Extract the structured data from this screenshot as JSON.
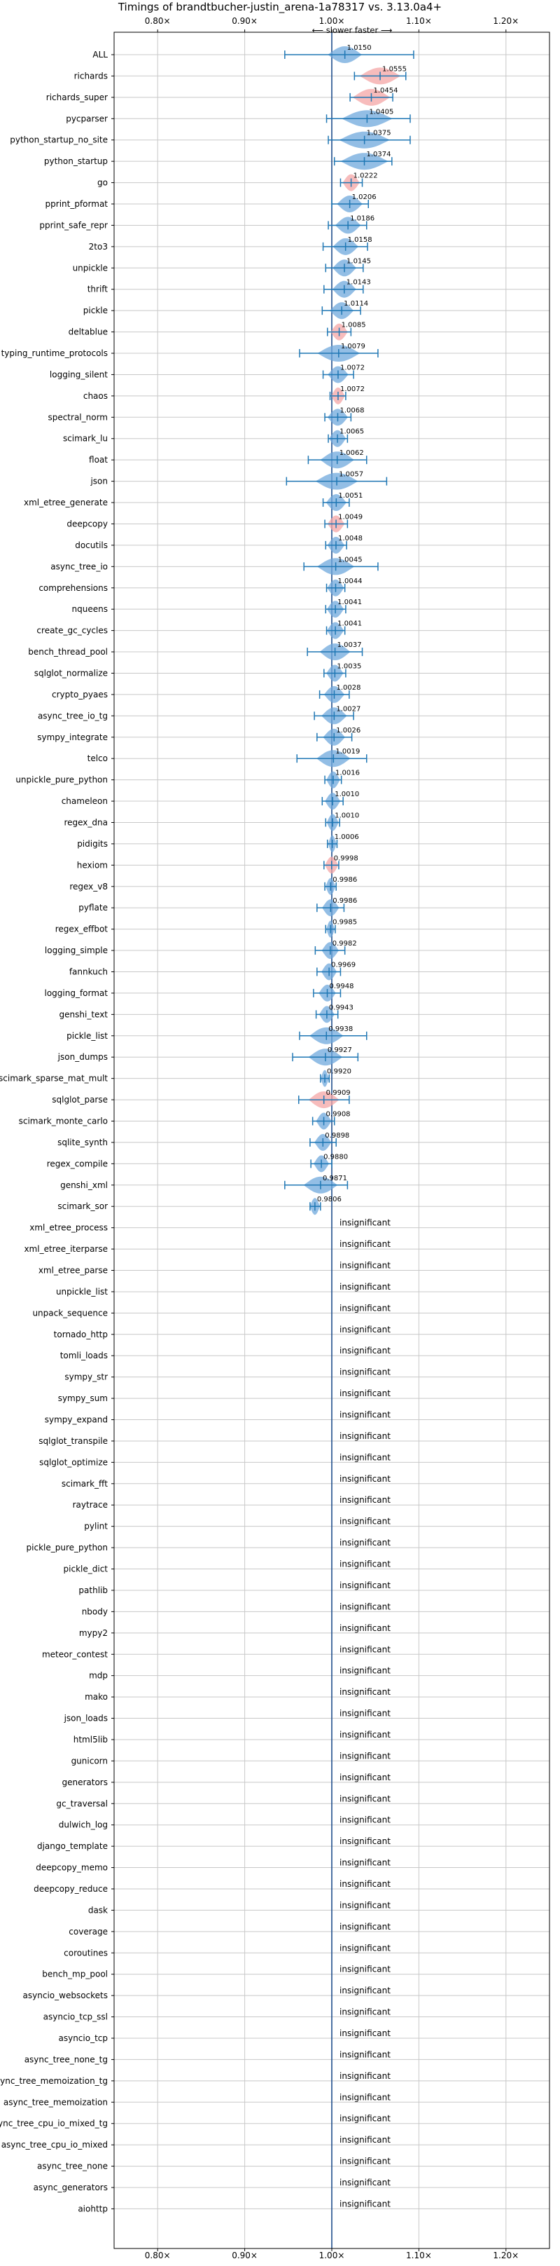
{
  "chart_data": {
    "type": "violin",
    "title": "Timings of brandtbucher-justin_arena-1a78317 vs. 3.13.0a4+",
    "axis_note": "⟵ slower    faster ⟶",
    "xlim": [
      0.75,
      1.25
    ],
    "xticks": [
      0.8,
      0.9,
      1.0,
      1.1,
      1.2
    ],
    "xtick_labels": [
      "0.80×",
      "0.90×",
      "1.00×",
      "1.10×",
      "1.20×"
    ],
    "grid": true,
    "insignificant_label": "insignificant",
    "colors": {
      "faster": "#6fa8dc",
      "slower": "#f4a6a6",
      "errorbar": "#1f77b4",
      "reference_line": "#1f4e8c",
      "grid": "#c8c8c8"
    },
    "benchmarks": [
      {
        "name": "ALL",
        "mean": 1.015,
        "label": "1.0150",
        "lo": 0.946,
        "hi": 1.094,
        "color": "faster",
        "spread": 0.02
      },
      {
        "name": "richards",
        "mean": 1.0555,
        "label": "1.0555",
        "lo": 1.026,
        "hi": 1.085,
        "color": "slower",
        "spread": 0.024
      },
      {
        "name": "richards_super",
        "mean": 1.0454,
        "label": "1.0454",
        "lo": 1.021,
        "hi": 1.07,
        "color": "slower",
        "spread": 0.022
      },
      {
        "name": "pycparser",
        "mean": 1.0405,
        "label": "1.0405",
        "lo": 0.994,
        "hi": 1.09,
        "color": "faster",
        "spread": 0.03
      },
      {
        "name": "python_startup_no_site",
        "mean": 1.0375,
        "label": "1.0375",
        "lo": 0.996,
        "hi": 1.09,
        "color": "faster",
        "spread": 0.03
      },
      {
        "name": "python_startup",
        "mean": 1.0374,
        "label": "1.0374",
        "lo": 1.003,
        "hi": 1.069,
        "color": "faster",
        "spread": 0.028
      },
      {
        "name": "go",
        "mean": 1.0222,
        "label": "1.0222",
        "lo": 1.01,
        "hi": 1.035,
        "color": "slower",
        "spread": 0.01
      },
      {
        "name": "pprint_pformat",
        "mean": 1.0206,
        "label": "1.0206",
        "lo": 1.0,
        "hi": 1.042,
        "color": "faster",
        "spread": 0.015
      },
      {
        "name": "pprint_safe_repr",
        "mean": 1.0186,
        "label": "1.0186",
        "lo": 0.996,
        "hi": 1.04,
        "color": "faster",
        "spread": 0.015
      },
      {
        "name": "2to3",
        "mean": 1.0158,
        "label": "1.0158",
        "lo": 0.99,
        "hi": 1.041,
        "color": "faster",
        "spread": 0.015
      },
      {
        "name": "unpickle",
        "mean": 1.0145,
        "label": "1.0145",
        "lo": 0.993,
        "hi": 1.036,
        "color": "faster",
        "spread": 0.014
      },
      {
        "name": "thrift",
        "mean": 1.0143,
        "label": "1.0143",
        "lo": 0.991,
        "hi": 1.036,
        "color": "faster",
        "spread": 0.014
      },
      {
        "name": "pickle",
        "mean": 1.0114,
        "label": "1.0114",
        "lo": 0.989,
        "hi": 1.033,
        "color": "faster",
        "spread": 0.014
      },
      {
        "name": "deltablue",
        "mean": 1.0085,
        "label": "1.0085",
        "lo": 0.995,
        "hi": 1.022,
        "color": "slower",
        "spread": 0.01
      },
      {
        "name": "typing_runtime_protocols",
        "mean": 1.0079,
        "label": "1.0079",
        "lo": 0.963,
        "hi": 1.053,
        "color": "faster",
        "spread": 0.025
      },
      {
        "name": "logging_silent",
        "mean": 1.0072,
        "label": "1.0072",
        "lo": 0.99,
        "hi": 1.025,
        "color": "faster",
        "spread": 0.012
      },
      {
        "name": "chaos",
        "mean": 1.0072,
        "label": "1.0072",
        "lo": 0.998,
        "hi": 1.016,
        "color": "slower",
        "spread": 0.008
      },
      {
        "name": "spectral_norm",
        "mean": 1.0068,
        "label": "1.0068",
        "lo": 0.992,
        "hi": 1.022,
        "color": "faster",
        "spread": 0.012
      },
      {
        "name": "scimark_lu",
        "mean": 1.0065,
        "label": "1.0065",
        "lo": 0.996,
        "hi": 1.018,
        "color": "faster",
        "spread": 0.01
      },
      {
        "name": "float",
        "mean": 1.0062,
        "label": "1.0062",
        "lo": 0.973,
        "hi": 1.04,
        "color": "faster",
        "spread": 0.02
      },
      {
        "name": "json",
        "mean": 1.0057,
        "label": "1.0057",
        "lo": 0.948,
        "hi": 1.063,
        "color": "faster",
        "spread": 0.025
      },
      {
        "name": "xml_etree_generate",
        "mean": 1.0051,
        "label": "1.0051",
        "lo": 0.99,
        "hi": 1.02,
        "color": "faster",
        "spread": 0.012
      },
      {
        "name": "deepcopy",
        "mean": 1.0049,
        "label": "1.0049",
        "lo": 0.992,
        "hi": 1.018,
        "color": "slower",
        "spread": 0.01
      },
      {
        "name": "docutils",
        "mean": 1.0048,
        "label": "1.0048",
        "lo": 0.993,
        "hi": 1.017,
        "color": "faster",
        "spread": 0.01
      },
      {
        "name": "async_tree_io",
        "mean": 1.0045,
        "label": "1.0045",
        "lo": 0.968,
        "hi": 1.053,
        "color": "faster",
        "spread": 0.022
      },
      {
        "name": "comprehensions",
        "mean": 1.0044,
        "label": "1.0044",
        "lo": 0.994,
        "hi": 1.015,
        "color": "faster",
        "spread": 0.01
      },
      {
        "name": "nqueens",
        "mean": 1.0041,
        "label": "1.0041",
        "lo": 0.993,
        "hi": 1.016,
        "color": "faster",
        "spread": 0.01
      },
      {
        "name": "create_gc_cycles",
        "mean": 1.0041,
        "label": "1.0041",
        "lo": 0.994,
        "hi": 1.015,
        "color": "faster",
        "spread": 0.01
      },
      {
        "name": "bench_thread_pool",
        "mean": 1.0037,
        "label": "1.0037",
        "lo": 0.972,
        "hi": 1.035,
        "color": "faster",
        "spread": 0.018
      },
      {
        "name": "sqlglot_normalize",
        "mean": 1.0035,
        "label": "1.0035",
        "lo": 0.991,
        "hi": 1.016,
        "color": "faster",
        "spread": 0.01
      },
      {
        "name": "crypto_pyaes",
        "mean": 1.0028,
        "label": "1.0028",
        "lo": 0.986,
        "hi": 1.02,
        "color": "faster",
        "spread": 0.012
      },
      {
        "name": "async_tree_io_tg",
        "mean": 1.0027,
        "label": "1.0027",
        "lo": 0.98,
        "hi": 1.025,
        "color": "faster",
        "spread": 0.015
      },
      {
        "name": "sympy_integrate",
        "mean": 1.0026,
        "label": "1.0026",
        "lo": 0.983,
        "hi": 1.023,
        "color": "faster",
        "spread": 0.013
      },
      {
        "name": "telco",
        "mean": 1.0019,
        "label": "1.0019",
        "lo": 0.96,
        "hi": 1.04,
        "color": "faster",
        "spread": 0.02
      },
      {
        "name": "unpickle_pure_python",
        "mean": 1.0016,
        "label": "1.0016",
        "lo": 0.992,
        "hi": 1.011,
        "color": "faster",
        "spread": 0.008
      },
      {
        "name": "chameleon",
        "mean": 1.001,
        "label": "1.0010",
        "lo": 0.989,
        "hi": 1.013,
        "color": "faster",
        "spread": 0.009
      },
      {
        "name": "regex_dna",
        "mean": 1.001,
        "label": "1.0010",
        "lo": 0.993,
        "hi": 1.009,
        "color": "faster",
        "spread": 0.007
      },
      {
        "name": "pidigits",
        "mean": 1.0006,
        "label": "1.0006",
        "lo": 0.995,
        "hi": 1.006,
        "color": "faster",
        "spread": 0.005
      },
      {
        "name": "hexiom",
        "mean": 0.9998,
        "label": "0.9998",
        "lo": 0.991,
        "hi": 1.008,
        "color": "slower",
        "spread": 0.008
      },
      {
        "name": "regex_v8",
        "mean": 0.9986,
        "label": "0.9986",
        "lo": 0.992,
        "hi": 1.005,
        "color": "faster",
        "spread": 0.006
      },
      {
        "name": "pyflate",
        "mean": 0.9986,
        "label": "0.9986",
        "lo": 0.983,
        "hi": 1.014,
        "color": "faster",
        "spread": 0.01
      },
      {
        "name": "regex_effbot",
        "mean": 0.9985,
        "label": "0.9985",
        "lo": 0.993,
        "hi": 1.004,
        "color": "faster",
        "spread": 0.005
      },
      {
        "name": "logging_simple",
        "mean": 0.9982,
        "label": "0.9982",
        "lo": 0.981,
        "hi": 1.015,
        "color": "faster",
        "spread": 0.01
      },
      {
        "name": "fannkuch",
        "mean": 0.9969,
        "label": "0.9969",
        "lo": 0.983,
        "hi": 1.01,
        "color": "faster",
        "spread": 0.009
      },
      {
        "name": "logging_format",
        "mean": 0.9948,
        "label": "0.9948",
        "lo": 0.979,
        "hi": 1.01,
        "color": "faster",
        "spread": 0.01
      },
      {
        "name": "genshi_text",
        "mean": 0.9943,
        "label": "0.9943",
        "lo": 0.982,
        "hi": 1.007,
        "color": "faster",
        "spread": 0.009
      },
      {
        "name": "pickle_list",
        "mean": 0.9938,
        "label": "0.9938",
        "lo": 0.963,
        "hi": 1.04,
        "color": "faster",
        "spread": 0.02
      },
      {
        "name": "json_dumps",
        "mean": 0.9927,
        "label": "0.9927",
        "lo": 0.955,
        "hi": 1.03,
        "color": "faster",
        "spread": 0.02
      },
      {
        "name": "scimark_sparse_mat_mult",
        "mean": 0.992,
        "label": "0.9920",
        "lo": 0.987,
        "hi": 0.997,
        "color": "faster",
        "spread": 0.004
      },
      {
        "name": "sqlglot_parse",
        "mean": 0.9909,
        "label": "0.9909",
        "lo": 0.962,
        "hi": 1.02,
        "color": "slower",
        "spread": 0.018
      },
      {
        "name": "scimark_monte_carlo",
        "mean": 0.9908,
        "label": "0.9908",
        "lo": 0.978,
        "hi": 1.003,
        "color": "faster",
        "spread": 0.009
      },
      {
        "name": "sqlite_synth",
        "mean": 0.9898,
        "label": "0.9898",
        "lo": 0.975,
        "hi": 1.005,
        "color": "faster",
        "spread": 0.01
      },
      {
        "name": "regex_compile",
        "mean": 0.988,
        "label": "0.9880",
        "lo": 0.976,
        "hi": 1.0,
        "color": "faster",
        "spread": 0.009
      },
      {
        "name": "genshi_xml",
        "mean": 0.9871,
        "label": "0.9871",
        "lo": 0.946,
        "hi": 1.018,
        "color": "faster",
        "spread": 0.02
      },
      {
        "name": "scimark_sor",
        "mean": 0.9806,
        "label": "0.9806",
        "lo": 0.975,
        "hi": 0.987,
        "color": "faster",
        "spread": 0.006
      },
      {
        "name": "xml_etree_process",
        "insignificant": true
      },
      {
        "name": "xml_etree_iterparse",
        "insignificant": true
      },
      {
        "name": "xml_etree_parse",
        "insignificant": true
      },
      {
        "name": "unpickle_list",
        "insignificant": true
      },
      {
        "name": "unpack_sequence",
        "insignificant": true
      },
      {
        "name": "tornado_http",
        "insignificant": true
      },
      {
        "name": "tomli_loads",
        "insignificant": true
      },
      {
        "name": "sympy_str",
        "insignificant": true
      },
      {
        "name": "sympy_sum",
        "insignificant": true
      },
      {
        "name": "sympy_expand",
        "insignificant": true
      },
      {
        "name": "sqlglot_transpile",
        "insignificant": true
      },
      {
        "name": "sqlglot_optimize",
        "insignificant": true
      },
      {
        "name": "scimark_fft",
        "insignificant": true
      },
      {
        "name": "raytrace",
        "insignificant": true
      },
      {
        "name": "pylint",
        "insignificant": true
      },
      {
        "name": "pickle_pure_python",
        "insignificant": true
      },
      {
        "name": "pickle_dict",
        "insignificant": true
      },
      {
        "name": "pathlib",
        "insignificant": true
      },
      {
        "name": "nbody",
        "insignificant": true
      },
      {
        "name": "mypy2",
        "insignificant": true
      },
      {
        "name": "meteor_contest",
        "insignificant": true
      },
      {
        "name": "mdp",
        "insignificant": true
      },
      {
        "name": "mako",
        "insignificant": true
      },
      {
        "name": "json_loads",
        "insignificant": true
      },
      {
        "name": "html5lib",
        "insignificant": true
      },
      {
        "name": "gunicorn",
        "insignificant": true
      },
      {
        "name": "generators",
        "insignificant": true
      },
      {
        "name": "gc_traversal",
        "insignificant": true
      },
      {
        "name": "dulwich_log",
        "insignificant": true
      },
      {
        "name": "django_template",
        "insignificant": true
      },
      {
        "name": "deepcopy_memo",
        "insignificant": true
      },
      {
        "name": "deepcopy_reduce",
        "insignificant": true
      },
      {
        "name": "dask",
        "insignificant": true
      },
      {
        "name": "coverage",
        "insignificant": true
      },
      {
        "name": "coroutines",
        "insignificant": true
      },
      {
        "name": "bench_mp_pool",
        "insignificant": true
      },
      {
        "name": "asyncio_websockets",
        "insignificant": true
      },
      {
        "name": "asyncio_tcp_ssl",
        "insignificant": true
      },
      {
        "name": "asyncio_tcp",
        "insignificant": true
      },
      {
        "name": "async_tree_none_tg",
        "insignificant": true
      },
      {
        "name": "async_tree_memoization_tg",
        "insignificant": true
      },
      {
        "name": "async_tree_memoization",
        "insignificant": true
      },
      {
        "name": "async_tree_cpu_io_mixed_tg",
        "insignificant": true
      },
      {
        "name": "async_tree_cpu_io_mixed",
        "insignificant": true
      },
      {
        "name": "async_tree_none",
        "insignificant": true
      },
      {
        "name": "async_generators",
        "insignificant": true
      },
      {
        "name": "aiohttp",
        "insignificant": true
      }
    ]
  }
}
